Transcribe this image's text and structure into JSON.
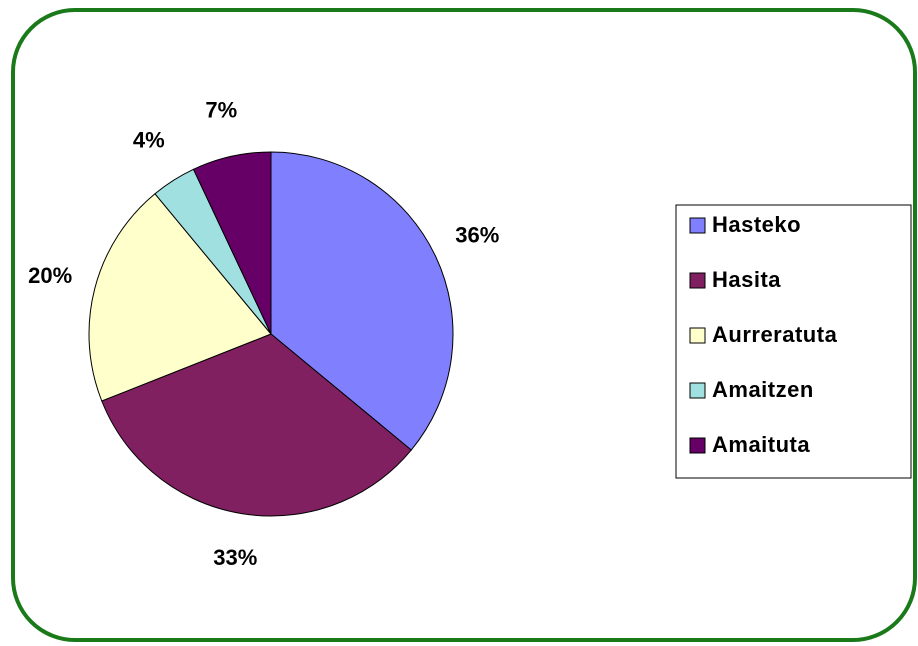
{
  "chart_data": {
    "type": "pie",
    "categories": [
      "Hasteko",
      "Hasita",
      "Aurreratuta",
      "Amaitzen",
      "Amaituta"
    ],
    "values": [
      36,
      33,
      20,
      4,
      7
    ],
    "value_labels": [
      "36%",
      "33%",
      "20%",
      "4%",
      "7%"
    ],
    "colors": [
      "#8080ff",
      "#802060",
      "#ffffcc",
      "#a0e0e0",
      "#660066"
    ],
    "legend": "right"
  }
}
